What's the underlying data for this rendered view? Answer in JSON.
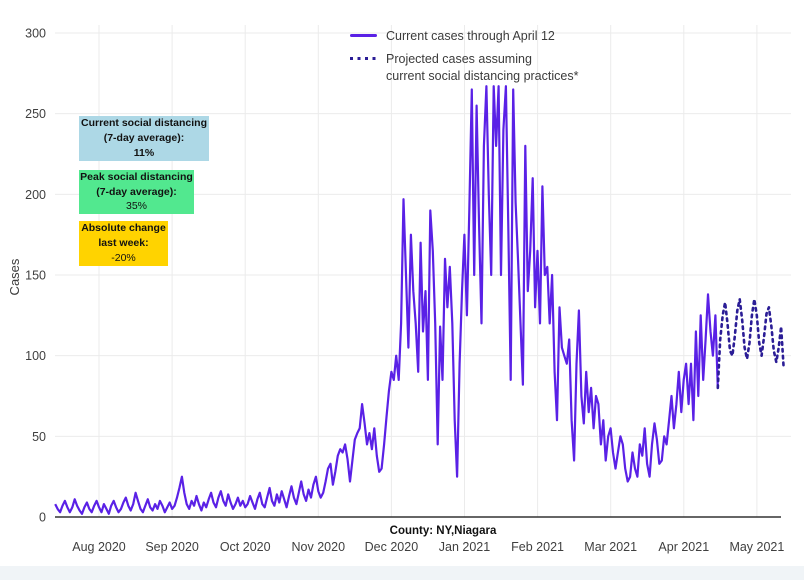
{
  "y_axis": {
    "label": "Cases"
  },
  "legend": {
    "current": "Current cases through April 12",
    "projected_line1": "Projected cases assuming",
    "projected_line2": "current social distancing practices*"
  },
  "annotations": [
    {
      "name": "current-social-distancing",
      "color": "#add8e6",
      "lines": [
        "Current social distancing",
        "(7-day average):",
        "11%"
      ]
    },
    {
      "name": "peak-social-distancing",
      "color": "#52e88f",
      "lines": [
        "Peak social distancing",
        "(7-day average):",
        "35%"
      ]
    },
    {
      "name": "absolute-change-last-week",
      "color": "#ffd300",
      "lines": [
        "Absolute change",
        "last week:",
        "-20%"
      ]
    }
  ],
  "x_axis_label": "County: NY,Niagara",
  "chart_data": {
    "type": "line",
    "title": "",
    "xlabel": "County: NY,Niagara",
    "ylabel": "Cases",
    "ylim": [
      0,
      300
    ],
    "yticks": [
      0,
      50,
      100,
      150,
      200,
      250,
      300
    ],
    "xticks": [
      "Aug 2020",
      "Sep 2020",
      "Oct 2020",
      "Nov 2020",
      "Dec 2020",
      "Jan 2021",
      "Feb 2021",
      "Mar 2021",
      "Apr 2021",
      "May 2021"
    ],
    "frequency": "daily",
    "grid": true,
    "legend_position": "top-center",
    "series": [
      {
        "name": "Current cases through April 12",
        "style": "solid",
        "color": "#5a21e6",
        "start_date": "2020-07-14",
        "values": [
          8,
          5,
          3,
          7,
          10,
          6,
          3,
          6,
          11,
          7,
          4,
          2,
          6,
          9,
          5,
          3,
          7,
          10,
          6,
          3,
          8,
          5,
          2,
          7,
          10,
          6,
          3,
          5,
          9,
          12,
          7,
          4,
          8,
          15,
          10,
          5,
          3,
          7,
          11,
          6,
          4,
          8,
          5,
          10,
          7,
          3,
          6,
          9,
          5,
          7,
          12,
          18,
          25,
          15,
          8,
          5,
          10,
          7,
          13,
          8,
          4,
          9,
          6,
          11,
          15,
          9,
          6,
          12,
          16,
          10,
          7,
          14,
          9,
          5,
          8,
          12,
          7,
          10,
          6,
          8,
          13,
          9,
          5,
          11,
          15,
          8,
          6,
          12,
          18,
          10,
          7,
          14,
          9,
          16,
          11,
          6,
          13,
          19,
          12,
          8,
          15,
          22,
          14,
          10,
          17,
          12,
          20,
          25,
          16,
          12,
          15,
          22,
          30,
          33,
          20,
          28,
          38,
          42,
          40,
          45,
          36,
          22,
          35,
          48,
          52,
          55,
          70,
          58,
          45,
          52,
          42,
          55,
          38,
          28,
          30,
          45,
          62,
          78,
          90,
          85,
          100,
          85,
          120,
          197,
          150,
          105,
          175,
          140,
          120,
          90,
          170,
          115,
          140,
          85,
          190,
          165,
          120,
          45,
          118,
          85,
          160,
          130,
          155,
          120,
          60,
          25,
          95,
          140,
          175,
          125,
          190,
          265,
          150,
          255,
          180,
          120,
          230,
          267,
          200,
          150,
          267,
          230,
          267,
          150,
          240,
          267,
          180,
          85,
          265,
          195,
          160,
          120,
          82,
          230,
          140,
          165,
          210,
          130,
          165,
          120,
          205,
          150,
          155,
          120,
          150,
          90,
          60,
          130,
          105,
          100,
          95,
          110,
          60,
          35,
          95,
          128,
          75,
          58,
          90,
          65,
          80,
          55,
          75,
          70,
          45,
          60,
          35,
          50,
          55,
          40,
          30,
          40,
          50,
          45,
          30,
          22,
          25,
          40,
          30,
          25,
          45,
          38,
          55,
          33,
          25,
          45,
          58,
          48,
          33,
          35,
          50,
          45,
          60,
          75,
          55,
          70,
          90,
          65,
          85,
          95,
          70,
          95,
          60,
          115,
          75,
          125,
          85,
          110,
          138,
          115,
          100,
          125,
          80
        ]
      },
      {
        "name": "Projected cases assuming current social distancing practices*",
        "style": "dotted",
        "color": "#2b1d96",
        "start_date": "2021-04-12",
        "values": [
          80,
          110,
          125,
          133,
          120,
          103,
          100,
          112,
          128,
          135,
          122,
          105,
          98,
          108,
          125,
          135,
          125,
          108,
          100,
          112,
          126,
          130,
          118,
          103,
          96,
          105,
          118,
          93
        ]
      }
    ]
  }
}
